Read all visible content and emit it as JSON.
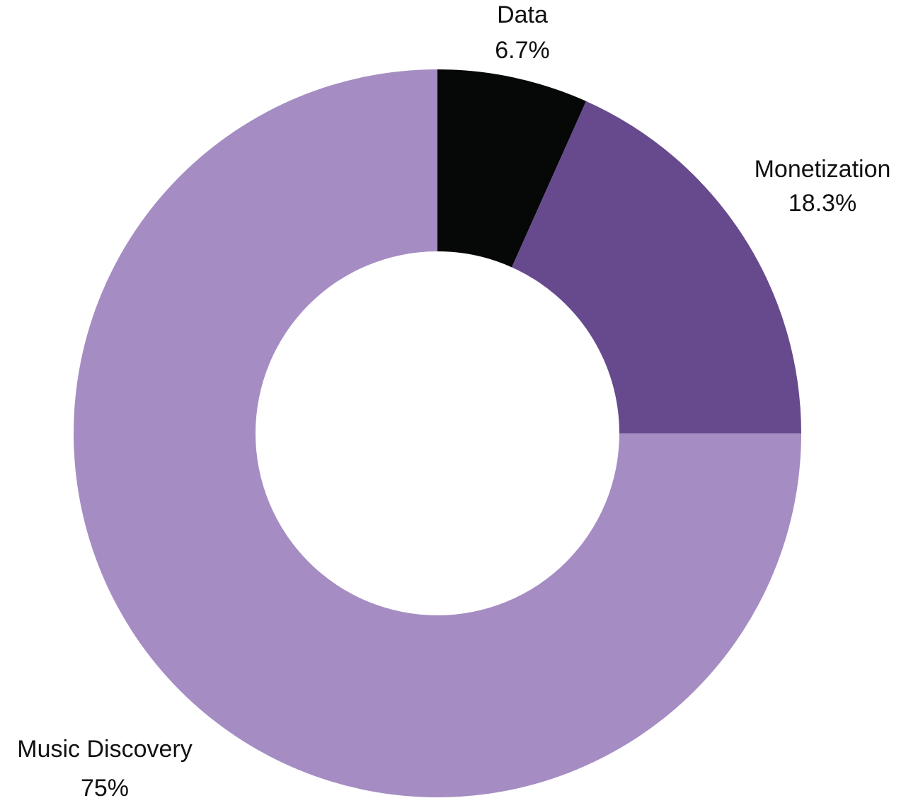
{
  "chart_data": {
    "type": "pie",
    "donut": true,
    "title": "",
    "categories": [
      "Data",
      "Monetization",
      "Music Discovery"
    ],
    "values": [
      6.7,
      18.3,
      75
    ],
    "value_labels": [
      "6.7%",
      "18.3%",
      "75%"
    ],
    "colors": [
      "#060808",
      "#664a8d",
      "#a58dc3"
    ],
    "start_angle": "12 o'clock",
    "direction": "clockwise",
    "legend": "none"
  }
}
